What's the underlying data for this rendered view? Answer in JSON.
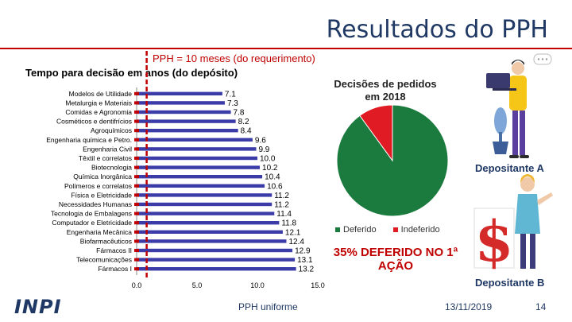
{
  "header": {
    "title": "Resultados do PPH"
  },
  "chart_data": [
    {
      "type": "bar",
      "orientation": "horizontal",
      "title": "Tempo para decisão em anos (do depósito)",
      "subtitle": "PPH = 10 meses (do requerimento)",
      "categories": [
        "Modelos de Utilidade",
        "Metalurgia e Materiais",
        "Comidas e Agronomia",
        "Cosméticos e dentifrícios",
        "Agroquímicos",
        "Engenharia química e Petro.",
        "Engenharia Civil",
        "Têxtil e correlatos",
        "Biotecnologia",
        "Química Inorgânica",
        "Polímeros e correlatos",
        "Física e Eletricidade",
        "Necessidades Humanas",
        "Tecnologia de Embalagens",
        "Computador e Eletricidade",
        "Engenharia Mecânica",
        "Biofarmacêuticos",
        "Fármacos II",
        "Telecomunicações",
        "Fármacos I"
      ],
      "values": [
        7.1,
        7.3,
        7.8,
        8.2,
        8.4,
        9.6,
        9.9,
        10.0,
        10.2,
        10.4,
        10.6,
        11.2,
        11.2,
        11.4,
        11.8,
        12.1,
        12.4,
        12.9,
        13.1,
        13.2
      ],
      "value_labels": [
        "7.1",
        "7.3",
        "7.8",
        "8.2",
        "8.4",
        "9.6",
        "9.9",
        "10.0",
        "10.2",
        "10.4",
        "10.6",
        "11.2",
        "11.2",
        "11.4",
        "11.8",
        "12.1",
        "12.4",
        "12.9",
        "13.1",
        "13.2"
      ],
      "xlim": [
        0,
        15
      ],
      "xticks": [
        "0.0",
        "5.0",
        "10.0",
        "15.0"
      ],
      "marker_line": {
        "value": 0.83
      },
      "bar_color": "#3c3ca8",
      "marker_color": "#c00000"
    },
    {
      "type": "pie",
      "title": "Decisões de pedidos em 2018",
      "labels": [
        "Deferido",
        "Indeferido"
      ],
      "values": [
        90,
        10
      ],
      "colors": [
        "#1b7a3e",
        "#e01b24"
      ],
      "legend": "bottom"
    }
  ],
  "annotations": {
    "deferido_note": "35% DEFERIDO NO 1ª AÇÃO",
    "depositante_a": "Depositante A",
    "depositante_b": "Depositante B"
  },
  "footer": {
    "caption": "PPH uniforme",
    "date": "13/11/2019",
    "page": "14",
    "logo": "INPI"
  },
  "icons": [
    "person-laptop-icon",
    "plant-icon",
    "person-pointing-icon",
    "dollar-icon",
    "speech-bubble-icon"
  ]
}
